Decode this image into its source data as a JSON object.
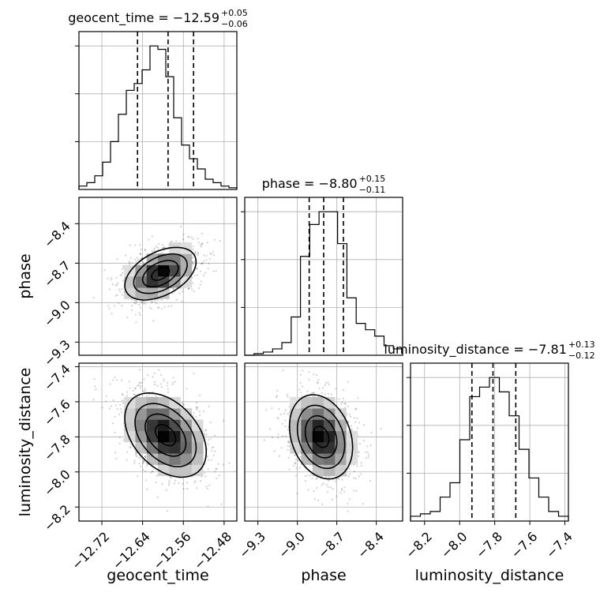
{
  "chart_data": {
    "type": "corner",
    "parameters": [
      "geocent_time",
      "phase",
      "luminosity_distance"
    ],
    "axis_labels": [
      "geocent_time",
      "phase",
      "luminosity_distance"
    ],
    "ticks": {
      "geocent_time": [
        -12.72,
        -12.64,
        -12.56,
        -12.48
      ],
      "phase": [
        -9.3,
        -9.0,
        -8.7,
        -8.4
      ],
      "luminosity_distance": [
        -8.2,
        -8.0,
        -7.8,
        -7.6,
        -7.4
      ]
    },
    "tick_labels": {
      "geocent_time": [
        "−12.72",
        "−12.64",
        "−12.56",
        "−12.48"
      ],
      "phase": [
        "−9.3",
        "−9.0",
        "−8.7",
        "−8.4"
      ],
      "luminosity_distance": [
        "−8.2",
        "−8.0",
        "−7.8",
        "−7.6",
        "−7.4"
      ]
    },
    "ranges": {
      "geocent_time": [
        -12.765,
        -12.455
      ],
      "phase": [
        -9.4,
        -8.2
      ],
      "luminosity_distance": [
        -8.28,
        -7.38
      ]
    },
    "grid": true,
    "titles": [
      {
        "param": "geocent_time",
        "prefix": "geocent_time = −12.59",
        "plus": "+0.05",
        "minus": "−0.06"
      },
      {
        "param": "phase",
        "prefix": "phase = −8.80",
        "plus": "+0.15",
        "minus": "−0.11"
      },
      {
        "param": "luminosity_distance",
        "prefix": "luminosity_distance = −7.81",
        "plus": "+0.13",
        "minus": "−0.12"
      }
    ],
    "quantiles": {
      "geocent_time": [
        -12.65,
        -12.59,
        -12.54
      ],
      "phase": [
        -8.91,
        -8.8,
        -8.65
      ],
      "luminosity_distance": [
        -7.93,
        -7.81,
        -7.68
      ]
    },
    "histograms": {
      "geocent_time": [
        1,
        2,
        4,
        8,
        14,
        22,
        29,
        31,
        35,
        42,
        41,
        33,
        21,
        13,
        9,
        6,
        3,
        2,
        1,
        0.5
      ],
      "phase": [
        0,
        0.5,
        1,
        2,
        4,
        12,
        31,
        41,
        45,
        45,
        35,
        18,
        10,
        8,
        6,
        3,
        2
      ],
      "luminosity_distance": [
        1,
        1.5,
        2,
        5,
        8,
        17,
        26,
        28,
        30,
        27,
        22,
        15,
        9,
        5,
        2,
        1
      ]
    },
    "correlations": [
      {
        "x": "geocent_time",
        "y": "phase",
        "center": [
          -12.605,
          -8.78
        ],
        "sd": [
          0.035,
          0.1
        ],
        "rho": 0.45
      },
      {
        "x": "geocent_time",
        "y": "luminosity_distance",
        "center": [
          -12.595,
          -7.79
        ],
        "sd": [
          0.04,
          0.12
        ],
        "rho": -0.4
      },
      {
        "x": "phase",
        "y": "luminosity_distance",
        "center": [
          -8.82,
          -7.8
        ],
        "sd": [
          0.12,
          0.12
        ],
        "rho": -0.25
      }
    ]
  }
}
